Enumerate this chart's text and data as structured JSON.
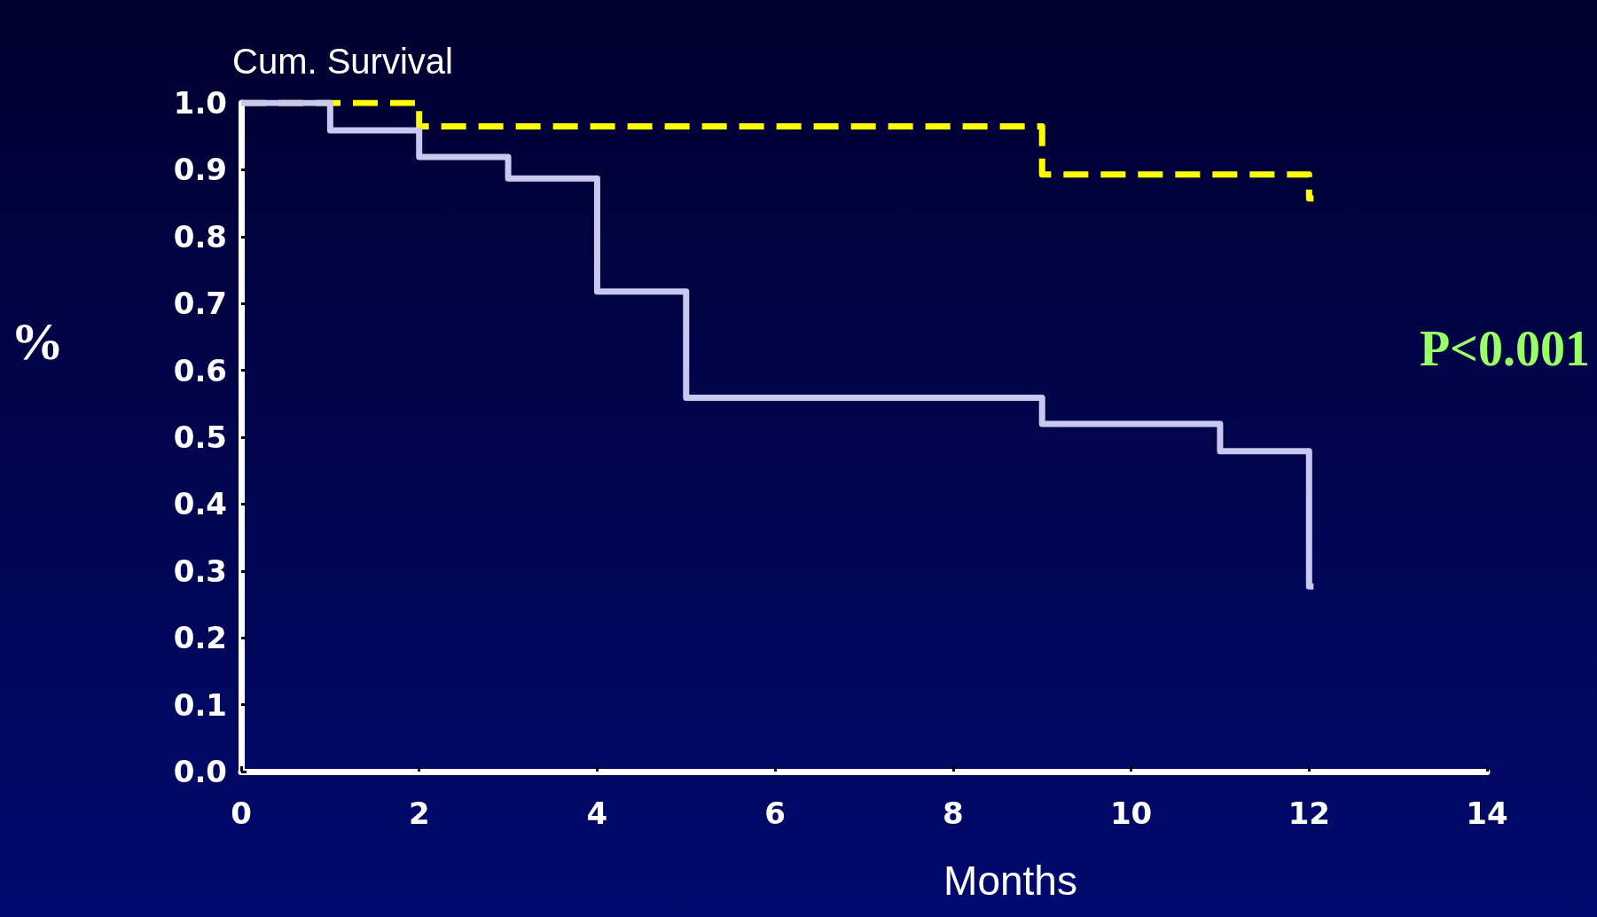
{
  "chart_data": {
    "type": "step",
    "ylabel": "Cum. Survival",
    "xlabel": "Months",
    "annotations": [
      "%",
      "P<0.001"
    ],
    "xlim": [
      0,
      14
    ],
    "xticks": [
      0,
      2,
      4,
      6,
      8,
      10,
      12,
      14
    ],
    "ylim": [
      0,
      1
    ],
    "yticks": [
      {
        "value": 0,
        "label": "0.0"
      },
      0.1,
      0.2,
      0.3,
      0.4,
      0.5,
      0.6,
      0.7,
      0.8,
      0.9,
      {
        "value": 1,
        "label": "1.0"
      }
    ],
    "grid": false,
    "marker": "none",
    "series": [
      {
        "color": "#ffff00",
        "line_style": "dashed",
        "x": [
          0,
          2,
          9,
          12,
          12.05
        ],
        "values": [
          1,
          0.965,
          0.893,
          0.857,
          0.857
        ]
      },
      {
        "color": "#c8c8f0",
        "line_style": "solid",
        "x": [
          0,
          1,
          2,
          3,
          4,
          5,
          9,
          11,
          12,
          12.05
        ],
        "values": [
          1,
          0.959,
          0.919,
          0.887,
          0.718,
          0.559,
          0.52,
          0.479,
          0.277,
          0.277
        ]
      }
    ]
  }
}
